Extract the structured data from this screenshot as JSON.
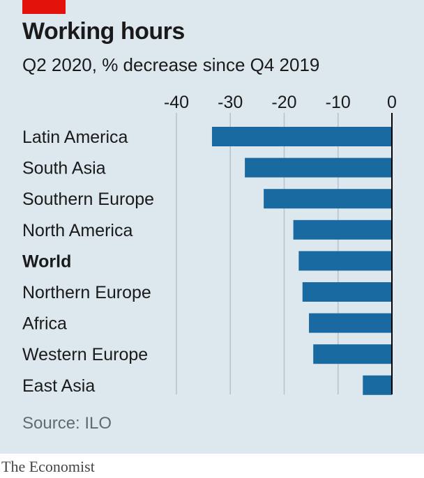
{
  "header": {
    "title": "Working hours",
    "subtitle": "Q2 2020, % decrease since Q4 2019"
  },
  "footer": {
    "source": "Source: ILO",
    "publisher": "The Economist"
  },
  "colors": {
    "background": "#dde7ee",
    "bar": "#1a6aa2",
    "accent": "#e3120b",
    "gridline": "#b5c2cb",
    "zero_line": "#000000"
  },
  "chart_data": {
    "type": "bar",
    "orientation": "horizontal",
    "title": "Working hours",
    "subtitle": "Q2 2020, % decrease since Q4 2019",
    "categories": [
      "Latin America",
      "South Asia",
      "Southern Europe",
      "North America",
      "World",
      "Northern Europe",
      "Africa",
      "Western Europe",
      "East Asia"
    ],
    "values": [
      -33.4,
      -27.3,
      -23.8,
      -18.3,
      -17.3,
      -16.6,
      -15.4,
      -14.6,
      -5.4
    ],
    "highlight": [
      "World"
    ],
    "xlim": [
      -40,
      0
    ],
    "xticks": [
      -40,
      -30,
      -20,
      -10,
      0
    ],
    "tick_labels": [
      "-40",
      "-30",
      "-20",
      "-10",
      "0"
    ],
    "xaxis_position": "top",
    "grid": true,
    "source": "Source: ILO"
  }
}
